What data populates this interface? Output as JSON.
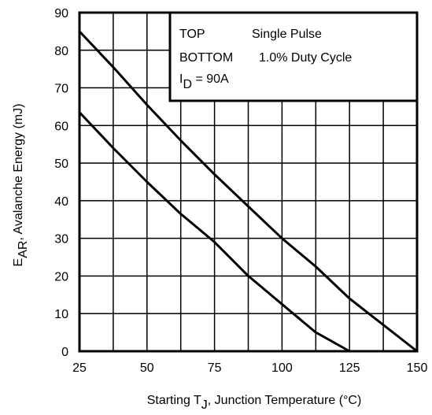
{
  "chart_data": {
    "type": "line",
    "xlabel": {
      "main": "Starting T",
      "sub": "J",
      "rest": ", Junction Temperature (°C)"
    },
    "ylabel": {
      "main": "E",
      "sub": "AR",
      "rest": ", Avalanche Energy (mJ)"
    },
    "xlim": [
      25,
      150
    ],
    "ylim": [
      0,
      90
    ],
    "x_ticks": [
      25,
      50,
      75,
      100,
      125,
      150
    ],
    "y_ticks": [
      0,
      10,
      20,
      30,
      40,
      50,
      60,
      70,
      80,
      90
    ],
    "x_grid_step": 12.5,
    "y_grid_step": 10,
    "grid": true,
    "legend": {
      "placement": "top-right",
      "line1_key": "TOP",
      "line1_value": "Single Pulse",
      "line2_key": "BOTTOM",
      "line2_value": "1.0% Duty Cycle",
      "line3_main": "I",
      "line3_sub": "D",
      "line3_rest": " = 90A"
    },
    "series": [
      {
        "name": "Single Pulse",
        "x": [
          25,
          37.5,
          50,
          62.5,
          75,
          87.5,
          100,
          112.5,
          125,
          137.5,
          150
        ],
        "y": [
          85,
          75.5,
          65.5,
          56,
          47,
          38.5,
          30,
          22.5,
          14,
          7,
          0
        ]
      },
      {
        "name": "1.0% Duty Cycle",
        "x": [
          25,
          37.5,
          50,
          62.5,
          75,
          87.5,
          100,
          112.5,
          125
        ],
        "y": [
          63.5,
          54,
          45,
          36.5,
          29,
          20,
          12.5,
          5,
          0
        ]
      }
    ],
    "colors": {
      "line": "#000000",
      "grid": "#000000",
      "background": "#ffffff"
    }
  }
}
